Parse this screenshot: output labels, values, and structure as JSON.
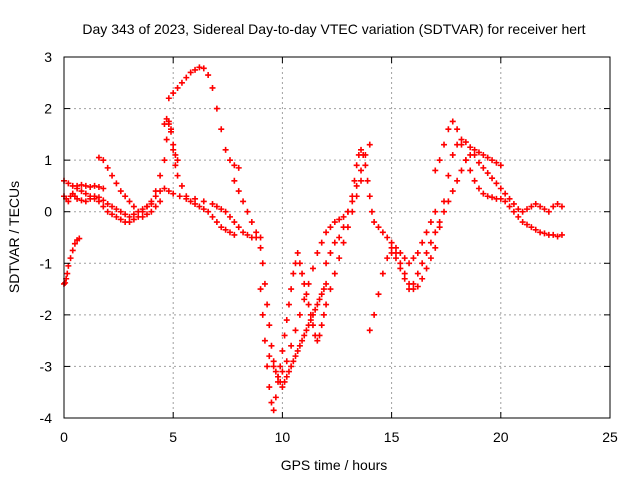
{
  "chart_data": {
    "type": "scatter",
    "title": "Day 343 of 2023, Sidereal Day-to-day VTEC variation (SDTVAR) for receiver hert",
    "xlabel": "GPS time / hours",
    "ylabel": "SDTVAR / TECUs",
    "xlim": [
      0,
      25
    ],
    "ylim": [
      -4,
      3
    ],
    "xticks": [
      0,
      5,
      10,
      15,
      20,
      25
    ],
    "yticks": [
      -4,
      -3,
      -2,
      -1,
      0,
      1,
      2,
      3
    ],
    "grid": true,
    "marker": "+",
    "series": [
      {
        "name": "SDTVAR",
        "color": "#ff0000",
        "x": [
          0.0,
          0.05,
          0.1,
          0.15,
          0.2,
          0.3,
          0.4,
          0.5,
          0.6,
          0.7,
          0.0,
          0.1,
          0.2,
          0.3,
          0.4,
          0.5,
          0.6,
          0.8,
          1.0,
          1.2,
          1.4,
          1.6,
          1.8,
          2.0,
          2.2,
          2.4,
          2.6,
          2.8,
          3.0,
          3.2,
          3.4,
          3.6,
          3.8,
          4.0,
          4.2,
          4.4,
          4.6,
          4.8,
          5.0,
          5.3,
          5.6,
          6.0,
          6.4,
          6.8,
          7.0,
          7.2,
          7.4,
          7.6,
          7.8,
          8.0,
          8.2,
          8.4,
          8.6,
          8.8,
          9.0,
          0.0,
          0.2,
          0.4,
          0.6,
          0.8,
          1.0,
          1.2,
          1.4,
          1.6,
          1.8,
          2.0,
          2.2,
          2.4,
          2.6,
          2.8,
          3.0,
          3.2,
          3.4,
          3.6,
          3.8,
          4.0,
          4.2,
          4.4,
          4.6,
          4.7,
          4.8,
          4.9,
          5.0,
          5.1,
          5.2,
          5.4,
          5.6,
          5.8,
          6.0,
          6.2,
          6.4,
          6.6,
          6.8,
          7.0,
          7.2,
          7.4,
          7.6,
          7.8,
          0.6,
          0.8,
          1.0,
          1.2,
          1.4,
          1.6,
          1.8,
          1.6,
          1.8,
          2.0,
          2.2,
          2.4,
          2.6,
          2.8,
          3.0,
          3.2,
          3.4,
          3.6,
          3.8,
          4.0,
          4.2,
          4.4,
          4.6,
          4.7,
          4.8,
          4.9,
          5.0,
          5.1,
          5.2,
          4.8,
          5.0,
          5.2,
          5.4,
          5.6,
          5.8,
          6.0,
          6.2,
          6.4,
          6.6,
          6.8,
          7.0,
          7.2,
          7.4,
          7.6,
          7.8,
          8.0,
          7.8,
          8.0,
          8.2,
          8.4,
          8.6,
          8.8,
          9.0,
          9.1,
          9.2,
          9.3,
          9.4,
          9.5,
          9.6,
          9.7,
          9.8,
          9.9,
          10.0,
          10.1,
          10.2,
          10.3,
          10.4,
          10.5,
          10.6,
          10.7,
          10.8,
          10.9,
          11.0,
          11.1,
          11.2,
          11.3,
          11.4,
          11.5,
          11.6,
          11.7,
          11.8,
          11.9,
          12.0,
          9.0,
          9.1,
          9.2,
          9.3,
          9.4,
          9.5,
          9.6,
          9.7,
          9.8,
          9.9,
          10.0,
          10.1,
          10.2,
          10.3,
          10.4,
          10.5,
          10.6,
          10.7,
          10.8,
          10.9,
          11.0,
          11.1,
          11.2,
          11.3,
          11.4,
          11.5,
          11.6,
          11.7,
          11.8,
          11.9,
          12.0,
          12.2,
          12.4,
          12.6,
          12.8,
          13.0,
          13.2,
          13.4,
          13.6,
          9.4,
          9.6,
          9.8,
          10.0,
          10.2,
          10.4,
          10.6,
          10.8,
          11.0,
          11.2,
          11.4,
          11.6,
          11.8,
          12.0,
          12.2,
          12.4,
          12.6,
          12.8,
          13.0,
          13.2,
          13.4,
          13.6,
          13.8,
          14.0,
          12.0,
          12.2,
          12.4,
          12.6,
          12.8,
          13.0,
          13.2,
          13.3,
          13.4,
          13.5,
          13.6,
          13.7,
          13.8,
          13.9,
          14.0,
          14.1,
          14.2,
          14.4,
          14.6,
          14.8,
          15.0,
          15.2,
          15.4,
          15.6,
          15.8,
          16.0,
          16.2,
          16.4,
          16.6,
          16.8,
          17.0,
          14.0,
          14.2,
          14.4,
          14.6,
          14.8,
          15.0,
          15.2,
          15.4,
          15.6,
          15.8,
          16.0,
          16.2,
          16.4,
          16.6,
          16.8,
          17.0,
          17.2,
          17.4,
          17.6,
          17.8,
          18.0,
          18.2,
          18.4,
          18.6,
          18.8,
          19.0,
          19.2,
          19.4,
          19.6,
          19.8,
          20.0,
          15.0,
          15.2,
          15.4,
          15.6,
          15.8,
          16.0,
          16.2,
          16.4,
          16.6,
          16.8,
          17.0,
          17.2,
          17.4,
          17.6,
          17.8,
          18.0,
          18.2,
          18.4,
          18.6,
          18.8,
          19.0,
          19.2,
          19.4,
          19.6,
          19.8,
          20.0,
          20.2,
          20.4,
          20.6,
          20.8,
          21.0,
          21.2,
          21.4,
          21.6,
          21.8,
          22.0,
          22.2,
          22.4,
          22.6,
          22.8,
          17.0,
          17.2,
          17.4,
          17.6,
          17.8,
          18.0,
          18.2,
          18.4,
          18.6,
          18.8,
          19.0,
          19.2,
          19.4,
          19.6,
          19.8,
          20.0,
          20.2,
          20.4,
          20.6,
          20.8,
          21.0,
          21.2,
          21.4,
          21.6,
          21.8,
          22.0,
          22.2,
          22.4,
          22.6,
          22.8
        ],
        "y": [
          -1.4,
          -1.38,
          -1.3,
          -1.2,
          -1.05,
          -0.9,
          -0.75,
          -0.62,
          -0.55,
          -0.52,
          0.3,
          0.25,
          0.2,
          0.3,
          0.35,
          0.3,
          0.25,
          0.22,
          0.2,
          0.25,
          0.3,
          0.28,
          0.22,
          0.15,
          0.1,
          0.05,
          0.0,
          -0.05,
          -0.1,
          -0.05,
          0.0,
          0.05,
          0.1,
          0.15,
          0.3,
          0.4,
          0.45,
          0.4,
          0.35,
          0.3,
          0.25,
          0.25,
          0.2,
          0.15,
          0.1,
          0.05,
          0.0,
          -0.1,
          -0.2,
          -0.3,
          -0.4,
          -0.45,
          -0.5,
          -0.5,
          -0.5,
          0.6,
          0.55,
          0.5,
          0.45,
          0.4,
          0.35,
          0.3,
          0.25,
          0.2,
          0.1,
          0.0,
          -0.05,
          -0.1,
          -0.15,
          -0.2,
          -0.2,
          -0.15,
          -0.1,
          0.0,
          0.1,
          0.2,
          0.4,
          0.7,
          1.0,
          1.4,
          1.7,
          1.6,
          1.2,
          0.9,
          0.7,
          0.5,
          0.3,
          0.2,
          0.15,
          0.1,
          0.05,
          0.0,
          -0.1,
          -0.2,
          -0.3,
          -0.35,
          -0.4,
          -0.45,
          0.5,
          0.52,
          0.5,
          0.48,
          0.5,
          0.48,
          0.45,
          1.05,
          1.0,
          0.85,
          0.7,
          0.55,
          0.4,
          0.3,
          0.2,
          0.1,
          0.0,
          -0.1,
          -0.05,
          0.0,
          0.1,
          0.2,
          1.7,
          1.8,
          1.75,
          1.55,
          1.3,
          1.1,
          1.0,
          2.2,
          2.3,
          2.4,
          2.5,
          2.6,
          2.7,
          2.75,
          2.8,
          2.78,
          2.65,
          2.4,
          2.0,
          1.6,
          1.2,
          1.0,
          0.9,
          0.85,
          0.6,
          0.4,
          0.2,
          0.0,
          -0.2,
          -0.4,
          -0.7,
          -1.0,
          -1.4,
          -1.8,
          -2.2,
          -2.6,
          -2.9,
          -3.1,
          -3.2,
          -3.3,
          -3.4,
          -3.3,
          -3.2,
          -3.1,
          -3.0,
          -2.9,
          -2.8,
          -2.7,
          -2.6,
          -2.5,
          -2.4,
          -2.3,
          -2.2,
          -2.1,
          -2.0,
          -1.9,
          -1.8,
          -1.7,
          -1.6,
          -1.5,
          -1.4,
          -1.5,
          -2.0,
          -2.5,
          -3.0,
          -3.4,
          -3.7,
          -3.85,
          -3.6,
          -3.3,
          -3.0,
          -2.7,
          -2.4,
          -2.1,
          -1.8,
          -1.5,
          -1.2,
          -1.0,
          -0.8,
          -1.0,
          -1.2,
          -1.4,
          -1.6,
          -1.8,
          -2.0,
          -2.2,
          -2.4,
          -2.5,
          -2.4,
          -2.2,
          -2.0,
          -1.8,
          -1.5,
          -1.2,
          -0.9,
          -0.6,
          -0.3,
          0.0,
          0.3,
          0.6,
          -2.8,
          -3.0,
          -3.2,
          -3.1,
          -2.9,
          -2.6,
          -2.3,
          -2.0,
          -1.7,
          -1.4,
          -1.1,
          -0.8,
          -0.6,
          -0.4,
          -0.3,
          -0.2,
          -0.15,
          -0.1,
          0.0,
          0.2,
          0.5,
          0.8,
          1.1,
          1.3,
          -1.0,
          -0.8,
          -0.6,
          -0.5,
          -0.3,
          0.0,
          0.3,
          0.6,
          0.9,
          1.1,
          1.2,
          1.1,
          0.9,
          0.6,
          0.3,
          0.0,
          -0.2,
          -0.3,
          -0.4,
          -0.5,
          -0.6,
          -0.7,
          -0.8,
          -0.9,
          -1.0,
          -0.9,
          -0.8,
          -0.6,
          -0.4,
          -0.2,
          0.0,
          -2.3,
          -2.0,
          -1.6,
          -1.2,
          -0.9,
          -0.8,
          -0.9,
          -1.1,
          -1.3,
          -1.5,
          -1.4,
          -1.2,
          -1.0,
          -0.8,
          -0.6,
          -0.4,
          -0.2,
          0.0,
          0.2,
          0.4,
          0.6,
          0.8,
          1.0,
          1.1,
          1.2,
          1.15,
          1.1,
          1.05,
          1.0,
          0.95,
          0.9,
          -0.7,
          -0.8,
          -1.0,
          -1.2,
          -1.4,
          -1.5,
          -1.45,
          -1.3,
          -1.1,
          -0.9,
          -0.7,
          -0.3,
          0.2,
          0.7,
          1.1,
          1.3,
          1.4,
          1.35,
          1.25,
          1.1,
          0.95,
          0.85,
          0.75,
          0.65,
          0.55,
          0.45,
          0.35,
          0.25,
          0.15,
          0.05,
          0.0,
          0.05,
          0.1,
          0.15,
          0.1,
          0.05,
          0.0,
          0.1,
          0.15,
          0.1,
          0.8,
          1.0,
          1.3,
          1.6,
          1.75,
          1.6,
          1.3,
          1.0,
          0.8,
          0.6,
          0.45,
          0.35,
          0.3,
          0.28,
          0.25,
          0.25,
          0.2,
          0.1,
          0.0,
          -0.1,
          -0.2,
          -0.25,
          -0.3,
          -0.35,
          -0.4,
          -0.42,
          -0.45,
          -0.45,
          -0.48,
          -0.45
        ]
      }
    ]
  }
}
